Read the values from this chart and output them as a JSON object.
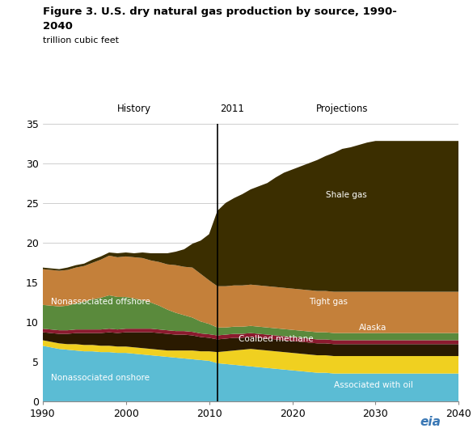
{
  "title_line1": "Figure 3. U.S. dry natural gas production by source, 1990-",
  "title_line2": "2040",
  "subtitle": "trillion cubic feet",
  "history_label": "History",
  "year_label": "2011",
  "projections_label": "Projections",
  "divider_year": 2011,
  "xlim": [
    1990,
    2040
  ],
  "ylim": [
    0,
    35
  ],
  "yticks": [
    0,
    5,
    10,
    15,
    20,
    25,
    30,
    35
  ],
  "xtick_positions": [
    1990,
    2000,
    2010,
    2020,
    2030,
    2040
  ],
  "background_color": "#ffffff",
  "colors": {
    "nonassociated_onshore": "#5bbcd4",
    "associated_with_oil": "#f0d020",
    "coalbed_methane": "#2a1a00",
    "alaska": "#8b1a2e",
    "nonassociated_offshore": "#5a8a3c",
    "tight_gas": "#c4803a",
    "shale_gas": "#3b2e00"
  },
  "labels": {
    "nonassociated_onshore": "Nonassociated onshore",
    "associated_with_oil": "Associated with oil",
    "coalbed_methane": "Coalbed methane",
    "alaska": "Alaska",
    "nonassociated_offshore": "Nonassociated offshore",
    "tight_gas": "Tight gas",
    "shale_gas": "Shale gas"
  },
  "years": [
    1990,
    1991,
    1992,
    1993,
    1994,
    1995,
    1996,
    1997,
    1998,
    1999,
    2000,
    2001,
    2002,
    2003,
    2004,
    2005,
    2006,
    2007,
    2008,
    2009,
    2010,
    2011,
    2012,
    2013,
    2014,
    2015,
    2016,
    2017,
    2018,
    2019,
    2020,
    2021,
    2022,
    2023,
    2024,
    2025,
    2026,
    2027,
    2028,
    2029,
    2030,
    2031,
    2032,
    2033,
    2034,
    2035,
    2036,
    2037,
    2038,
    2039,
    2040
  ],
  "nonassociated_onshore": [
    7.0,
    6.8,
    6.6,
    6.5,
    6.4,
    6.3,
    6.3,
    6.2,
    6.2,
    6.1,
    6.1,
    6.0,
    5.9,
    5.8,
    5.7,
    5.6,
    5.5,
    5.4,
    5.3,
    5.2,
    5.1,
    4.8,
    4.7,
    4.6,
    4.5,
    4.4,
    4.3,
    4.2,
    4.1,
    4.0,
    3.9,
    3.8,
    3.7,
    3.6,
    3.6,
    3.5,
    3.5,
    3.5,
    3.5,
    3.5,
    3.5,
    3.5,
    3.5,
    3.5,
    3.5,
    3.5,
    3.5,
    3.5,
    3.5,
    3.5,
    3.5
  ],
  "associated_with_oil": [
    0.7,
    0.7,
    0.7,
    0.7,
    0.8,
    0.8,
    0.8,
    0.8,
    0.8,
    0.8,
    0.8,
    0.8,
    0.8,
    0.8,
    0.8,
    0.8,
    0.9,
    1.0,
    1.1,
    1.1,
    1.2,
    1.4,
    1.6,
    1.8,
    2.0,
    2.2,
    2.2,
    2.2,
    2.2,
    2.2,
    2.2,
    2.2,
    2.2,
    2.2,
    2.2,
    2.2,
    2.2,
    2.2,
    2.2,
    2.2,
    2.2,
    2.2,
    2.2,
    2.2,
    2.2,
    2.2,
    2.2,
    2.2,
    2.2,
    2.2,
    2.2
  ],
  "coalbed_methane": [
    1.0,
    1.1,
    1.2,
    1.3,
    1.4,
    1.5,
    1.5,
    1.6,
    1.7,
    1.7,
    1.8,
    1.9,
    2.0,
    2.1,
    2.1,
    2.1,
    2.0,
    2.0,
    1.9,
    1.8,
    1.7,
    1.6,
    1.6,
    1.6,
    1.5,
    1.5,
    1.5,
    1.5,
    1.5,
    1.5,
    1.5,
    1.5,
    1.5,
    1.5,
    1.5,
    1.5,
    1.5,
    1.5,
    1.5,
    1.5,
    1.5,
    1.5,
    1.5,
    1.5,
    1.5,
    1.5,
    1.5,
    1.5,
    1.5,
    1.5,
    1.5
  ],
  "alaska": [
    0.45,
    0.45,
    0.45,
    0.45,
    0.45,
    0.45,
    0.45,
    0.45,
    0.45,
    0.45,
    0.45,
    0.45,
    0.45,
    0.45,
    0.45,
    0.45,
    0.45,
    0.45,
    0.45,
    0.45,
    0.45,
    0.5,
    0.5,
    0.5,
    0.5,
    0.5,
    0.5,
    0.5,
    0.5,
    0.5,
    0.5,
    0.5,
    0.5,
    0.5,
    0.5,
    0.5,
    0.5,
    0.5,
    0.5,
    0.5,
    0.5,
    0.5,
    0.5,
    0.5,
    0.5,
    0.5,
    0.5,
    0.5,
    0.5,
    0.5,
    0.5
  ],
  "nonassociated_offshore": [
    3.0,
    3.0,
    3.0,
    3.1,
    3.3,
    3.5,
    3.8,
    4.0,
    4.2,
    4.1,
    4.0,
    3.8,
    3.6,
    3.3,
    3.0,
    2.6,
    2.3,
    2.0,
    1.8,
    1.5,
    1.3,
    1.0,
    0.9,
    0.9,
    0.9,
    0.9,
    0.9,
    0.9,
    0.9,
    0.9,
    0.9,
    0.9,
    0.9,
    0.9,
    0.9,
    0.9,
    0.9,
    0.9,
    0.9,
    0.9,
    0.9,
    0.9,
    0.9,
    0.9,
    0.9,
    0.9,
    0.9,
    0.9,
    0.9,
    0.9,
    0.9
  ],
  "tight_gas": [
    4.5,
    4.5,
    4.5,
    4.5,
    4.5,
    4.5,
    4.6,
    4.8,
    5.0,
    5.0,
    5.1,
    5.2,
    5.3,
    5.3,
    5.5,
    5.7,
    6.0,
    6.1,
    6.3,
    6.0,
    5.5,
    5.2,
    5.2,
    5.2,
    5.2,
    5.2,
    5.2,
    5.2,
    5.2,
    5.2,
    5.2,
    5.2,
    5.2,
    5.2,
    5.2,
    5.2,
    5.2,
    5.2,
    5.2,
    5.2,
    5.2,
    5.2,
    5.2,
    5.2,
    5.2,
    5.2,
    5.2,
    5.2,
    5.2,
    5.2,
    5.2
  ],
  "shale_gas": [
    0.2,
    0.2,
    0.2,
    0.3,
    0.3,
    0.3,
    0.4,
    0.4,
    0.4,
    0.5,
    0.5,
    0.5,
    0.7,
    0.9,
    1.1,
    1.4,
    1.7,
    2.2,
    3.0,
    4.2,
    5.8,
    9.5,
    10.5,
    11.0,
    11.5,
    12.0,
    12.5,
    13.0,
    13.8,
    14.5,
    15.0,
    15.5,
    16.0,
    16.5,
    17.0,
    17.5,
    18.0,
    18.2,
    18.5,
    18.8,
    19.0,
    19.0,
    19.0,
    19.0,
    19.0,
    19.0,
    19.0,
    19.0,
    19.0,
    19.0,
    19.0
  ]
}
